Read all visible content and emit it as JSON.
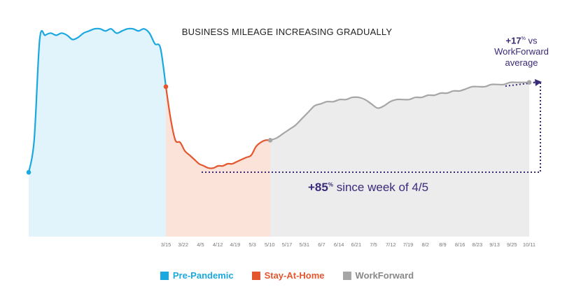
{
  "chart_data": {
    "type": "area",
    "title": "BUSINESS MILEAGE INCREASING GRADUALLY",
    "x_ticks": [
      "3/15",
      "3/22",
      "4/5",
      "4/12",
      "4/19",
      "5/3",
      "5/10",
      "5/17",
      "5/31",
      "6/7",
      "6/14",
      "6/21",
      "7/5",
      "7/12",
      "7/19",
      "8/2",
      "8/9",
      "8/16",
      "8/23",
      "9/13",
      "9/25",
      "10/11"
    ],
    "grid": false,
    "legend_position": "bottom",
    "series": [
      {
        "name": "Pre-Pandemic",
        "color": "#1ba8e0",
        "fill": "#e1f4fb",
        "values": [
          30,
          45,
          92,
          94,
          95,
          94,
          95,
          94,
          92,
          93,
          95,
          96,
          97,
          97,
          96,
          97,
          95,
          96,
          97,
          97,
          96,
          97,
          95,
          90,
          88,
          70
        ]
      },
      {
        "name": "Stay-At-Home",
        "color": "#e4572e",
        "fill": "#fbe3da",
        "values": [
          70,
          55,
          45,
          44,
          40,
          38,
          36,
          34,
          33,
          32,
          32,
          33,
          33,
          34,
          34,
          35,
          36,
          37,
          38,
          42,
          44,
          45,
          45
        ]
      },
      {
        "name": "WorkForward",
        "color": "#a6a6a6",
        "fill": "#ececec",
        "values": [
          45,
          46,
          48,
          50,
          52,
          55,
          58,
          61,
          62,
          63,
          63,
          64,
          64,
          65,
          65,
          64,
          62,
          60,
          61,
          63,
          64,
          64,
          64,
          65,
          65,
          66,
          66,
          67,
          67,
          68,
          68,
          69,
          70,
          70,
          70,
          71,
          71,
          71,
          72,
          72,
          72,
          72
        ]
      }
    ],
    "annotations": {
      "since": {
        "value": "+85",
        "unit": "%",
        "text": "since week of 4/5"
      },
      "vs_avg": {
        "value": "+17",
        "unit": "%",
        "line1_suffix": "vs",
        "line2": "WorkForward",
        "line3": "average"
      }
    },
    "annotation_color": "#3b2a7a"
  }
}
